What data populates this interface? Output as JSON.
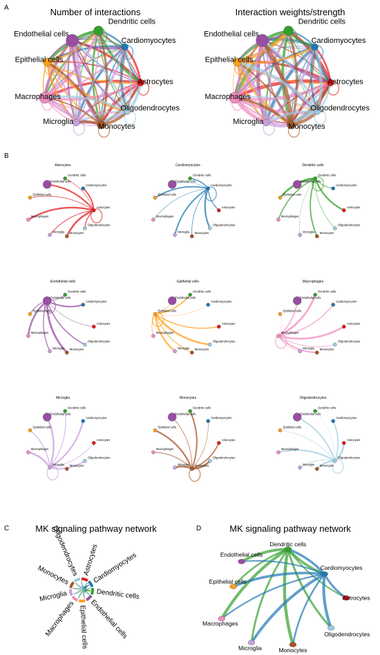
{
  "panel_letters": [
    "A",
    "B",
    "C",
    "D"
  ],
  "panel_a": {
    "left_title": "Number of interactions",
    "right_title": "Interaction weights/strength"
  },
  "panel_c": {
    "title": "MK signaling pathway network"
  },
  "panel_d": {
    "title": "MK signaling pathway network"
  },
  "cell_types": [
    "Astrocytes",
    "Cardiomyocytes",
    "Dendritic cells",
    "Endothelial cells",
    "Epithelial cells",
    "Macrophages",
    "Microglia",
    "Monocytes",
    "Oligodendrocytes"
  ],
  "colors": {
    "Astrocytes": "#e31a1c",
    "Cardiomyocytes": "#1f78b4",
    "Dendritic cells": "#33a02c",
    "Endothelial cells": "#984ea3",
    "Epithelial cells": "#ff9f1c",
    "Macrophages": "#f08cc0",
    "Microglia": "#c9a0dc",
    "Monocytes": "#a65628",
    "Oligodendrocytes": "#9ecae1"
  },
  "panel_b_sources": [
    "Astrocytes",
    "Cardiomyocytes",
    "Dendritic cells",
    "Endothelial cells",
    "Epithelial cells",
    "Macrophages",
    "Microglia",
    "Monocytes",
    "Oligodendrocytes"
  ],
  "panel_d_sources": [
    "Dendritic cells",
    "Cardiomyocytes"
  ]
}
